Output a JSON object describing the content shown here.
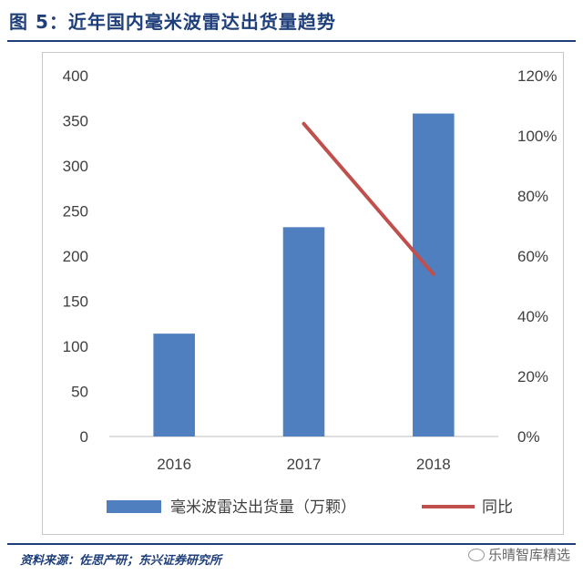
{
  "title": "图 5：近年国内毫米波雷达出货量趋势",
  "source": "资料来源：佐思产研；东兴证券研究所",
  "watermark": "乐晴智库精选",
  "colors": {
    "bar": "#4f7fbf",
    "line": "#c0504d",
    "title": "#1f3f7a"
  },
  "chart_data": {
    "type": "bar",
    "categories": [
      "2016",
      "2017",
      "2018"
    ],
    "series": [
      {
        "name": "毫米波雷达出货量（万颗）",
        "type": "bar",
        "axis": "left",
        "values": [
          114,
          232,
          358
        ]
      },
      {
        "name": "同比",
        "type": "line",
        "axis": "right",
        "values": [
          null,
          1.04,
          0.54
        ]
      }
    ],
    "ylim": [
      0,
      400
    ],
    "y_ticks": [
      "400",
      "350",
      "300",
      "250",
      "200",
      "150",
      "100",
      "50",
      "0"
    ],
    "y2lim": [
      0,
      1.2
    ],
    "y2_ticks": [
      "120%",
      "100%",
      "80%",
      "60%",
      "40%",
      "20%",
      "0%"
    ],
    "grid": false,
    "legend_position": "bottom"
  }
}
